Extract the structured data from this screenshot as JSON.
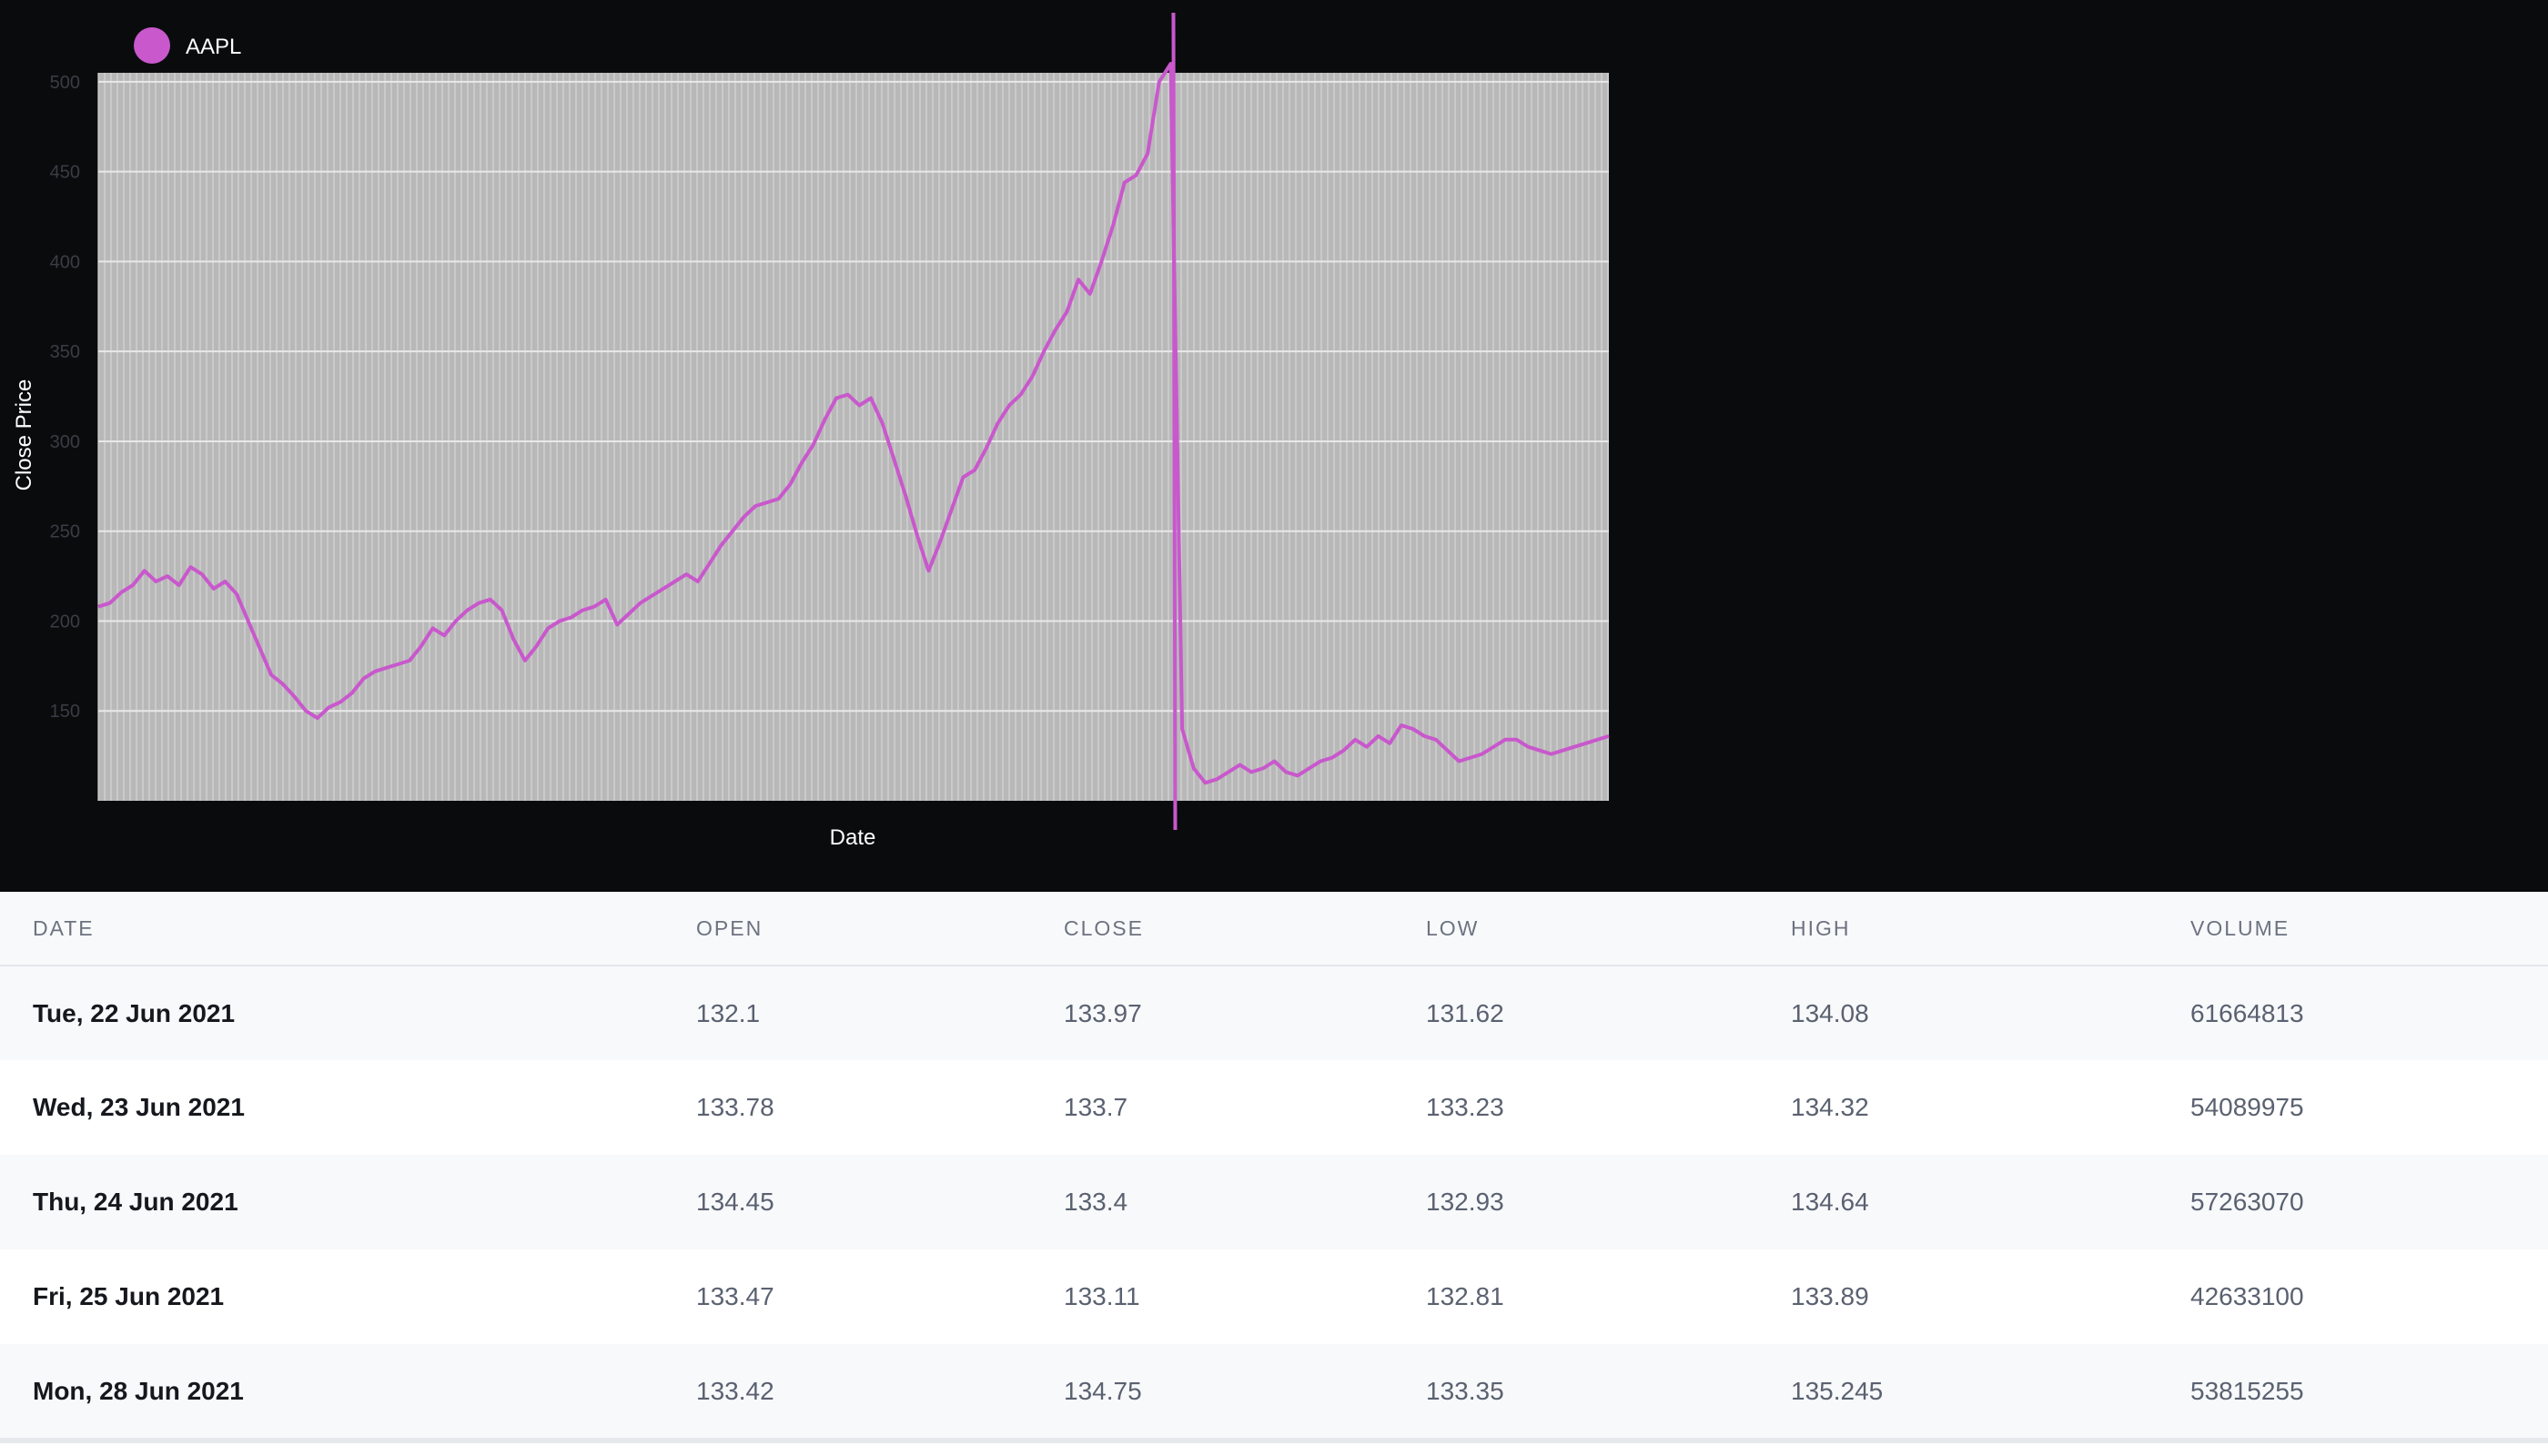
{
  "chart": {
    "legend_label": "AAPL",
    "ylabel": "Close Price",
    "xlabel": "Date",
    "line_color": "#c858cc",
    "plot_bg": "#b8b8b8"
  },
  "chart_data": {
    "type": "line",
    "title": "",
    "xlabel": "Date",
    "ylabel": "Close Price",
    "ylim": [
      100,
      505
    ],
    "yticks": [
      150,
      200,
      250,
      300,
      350,
      400,
      450,
      500
    ],
    "grid": true,
    "legend_position": "top-left",
    "series": [
      {
        "name": "AAPL",
        "color": "#c858cc",
        "values": [
          208,
          210,
          216,
          220,
          228,
          222,
          225,
          220,
          230,
          226,
          218,
          222,
          215,
          200,
          185,
          170,
          165,
          158,
          150,
          146,
          152,
          155,
          160,
          168,
          172,
          174,
          176,
          178,
          186,
          196,
          192,
          200,
          206,
          210,
          212,
          206,
          190,
          178,
          186,
          196,
          200,
          202,
          206,
          208,
          212,
          198,
          204,
          210,
          214,
          218,
          222,
          226,
          222,
          232,
          242,
          250,
          258,
          264,
          266,
          268,
          276,
          288,
          298,
          312,
          324,
          326,
          320,
          324,
          310,
          290,
          270,
          248,
          228,
          244,
          262,
          280,
          284,
          296,
          310,
          320,
          326,
          336,
          350,
          362,
          372,
          390,
          382,
          400,
          420,
          444,
          448,
          460,
          500,
          510,
          140,
          118,
          110,
          112,
          116,
          120,
          116,
          118,
          122,
          116,
          114,
          118,
          122,
          124,
          128,
          134,
          130,
          136,
          132,
          142,
          140,
          136,
          134,
          128,
          122,
          124,
          126,
          130,
          134,
          134,
          130,
          128,
          126,
          128,
          130,
          132,
          134,
          136
        ]
      }
    ]
  },
  "table": {
    "headers": {
      "date": "DATE",
      "open": "OPEN",
      "close": "CLOSE",
      "low": "LOW",
      "high": "HIGH",
      "volume": "VOLUME"
    },
    "rows": [
      {
        "date": "Tue, 22 Jun 2021",
        "open": "132.1",
        "close": "133.97",
        "low": "131.62",
        "high": "134.08",
        "volume": "61664813"
      },
      {
        "date": "Wed, 23 Jun 2021",
        "open": "133.78",
        "close": "133.7",
        "low": "133.23",
        "high": "134.32",
        "volume": "54089975"
      },
      {
        "date": "Thu, 24 Jun 2021",
        "open": "134.45",
        "close": "133.4",
        "low": "132.93",
        "high": "134.64",
        "volume": "57263070"
      },
      {
        "date": "Fri, 25 Jun 2021",
        "open": "133.47",
        "close": "133.11",
        "low": "132.81",
        "high": "133.89",
        "volume": "42633100"
      },
      {
        "date": "Mon, 28 Jun 2021",
        "open": "133.42",
        "close": "134.75",
        "low": "133.35",
        "high": "135.245",
        "volume": "53815255"
      }
    ]
  }
}
